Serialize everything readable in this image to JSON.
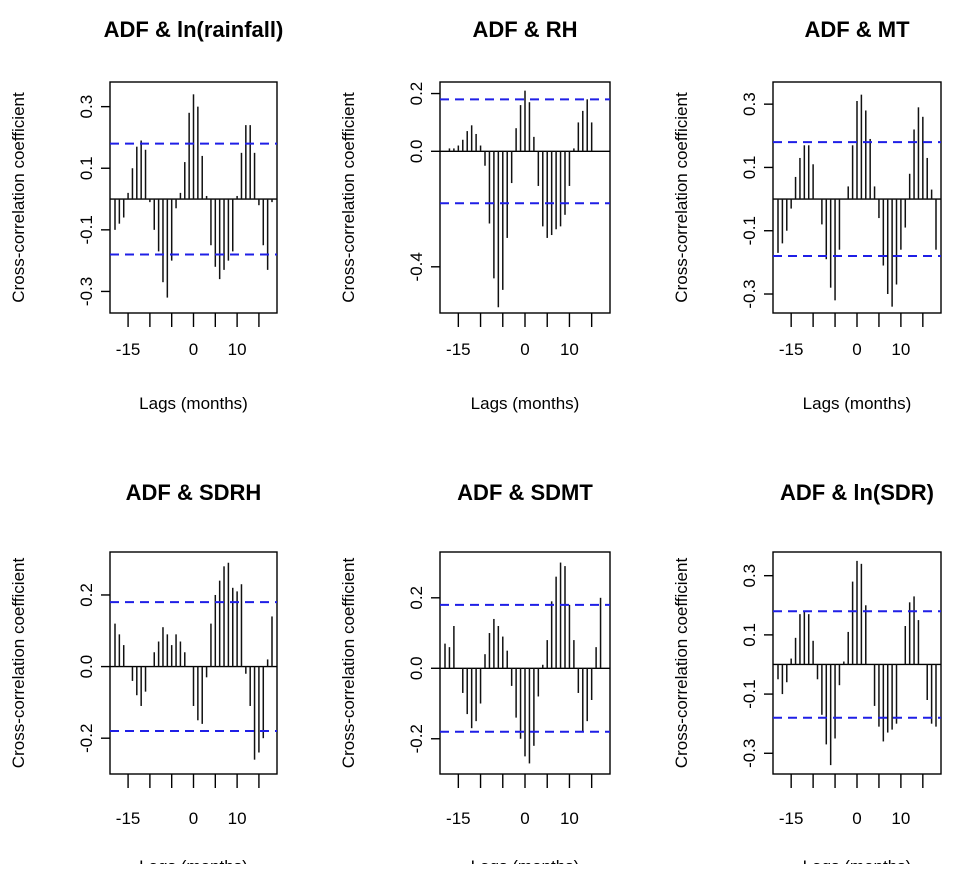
{
  "chart_data": [
    {
      "type": "bar",
      "title": "ADF & ln(rainfall)",
      "xlabel": "Lags (months)",
      "ylabel": "Cross-correlation coefficient",
      "xlim": [
        -18,
        18
      ],
      "ylim": [
        -0.37,
        0.38
      ],
      "xticks": [
        "-15",
        "0",
        "10"
      ],
      "yticks": [
        "-0.3",
        "-0.1",
        "0.1",
        "0.3"
      ],
      "confidence_limit": 0.18,
      "lags": [
        -18,
        -17,
        -16,
        -15,
        -14,
        -13,
        -12,
        -11,
        -10,
        -9,
        -8,
        -7,
        -6,
        -5,
        -4,
        -3,
        -2,
        -1,
        0,
        1,
        2,
        3,
        4,
        5,
        6,
        7,
        8,
        9,
        10,
        11,
        12,
        13,
        14,
        15,
        16,
        17,
        18
      ],
      "values": [
        -0.1,
        -0.08,
        -0.06,
        0.02,
        0.1,
        0.17,
        0.19,
        0.16,
        -0.01,
        -0.1,
        -0.17,
        -0.27,
        -0.32,
        -0.2,
        -0.03,
        0.02,
        0.12,
        0.28,
        0.34,
        0.3,
        0.14,
        0.01,
        -0.15,
        -0.22,
        -0.26,
        -0.23,
        -0.2,
        -0.17,
        0.01,
        0.15,
        0.24,
        0.24,
        0.15,
        -0.02,
        -0.15,
        -0.23,
        -0.01
      ]
    },
    {
      "type": "bar",
      "title": "ADF & RH",
      "xlabel": "Lags (months)",
      "ylabel": "Cross-correlation coefficient",
      "xlim": [
        -18,
        18
      ],
      "ylim": [
        -0.56,
        0.24
      ],
      "xticks": [
        "-15",
        "0",
        "10"
      ],
      "yticks": [
        "-0.4",
        "0.0",
        "0.2"
      ],
      "confidence_limit": 0.18,
      "lags": [
        -18,
        -17,
        -16,
        -15,
        -14,
        -13,
        -12,
        -11,
        -10,
        -9,
        -8,
        -7,
        -6,
        -5,
        -4,
        -3,
        -2,
        -1,
        0,
        1,
        2,
        3,
        4,
        5,
        6,
        7,
        8,
        9,
        10,
        11,
        12,
        13,
        14,
        15,
        16,
        17,
        18
      ],
      "values": [
        0.0,
        0.01,
        0.01,
        0.02,
        0.04,
        0.07,
        0.09,
        0.06,
        0.02,
        -0.05,
        -0.25,
        -0.44,
        -0.54,
        -0.48,
        -0.3,
        -0.11,
        0.08,
        0.16,
        0.21,
        0.17,
        0.05,
        -0.12,
        -0.26,
        -0.3,
        -0.29,
        -0.27,
        -0.26,
        -0.22,
        -0.12,
        0.01,
        0.1,
        0.14,
        0.18,
        0.1,
        0.0,
        0.0,
        0.0
      ]
    },
    {
      "type": "bar",
      "title": "ADF & MT",
      "xlabel": "Lags (months)",
      "ylabel": "Cross-correlation coefficient",
      "xlim": [
        -18,
        18
      ],
      "ylim": [
        -0.36,
        0.37
      ],
      "xticks": [
        "-15",
        "0",
        "10"
      ],
      "yticks": [
        "-0.3",
        "-0.1",
        "0.1",
        "0.3"
      ],
      "confidence_limit": 0.18,
      "lags": [
        -18,
        -17,
        -16,
        -15,
        -14,
        -13,
        -12,
        -11,
        -10,
        -9,
        -8,
        -7,
        -6,
        -5,
        -4,
        -3,
        -2,
        -1,
        0,
        1,
        2,
        3,
        4,
        5,
        6,
        7,
        8,
        9,
        10,
        11,
        12,
        13,
        14,
        15,
        16,
        17,
        18
      ],
      "values": [
        -0.17,
        -0.14,
        -0.1,
        -0.03,
        0.07,
        0.13,
        0.17,
        0.17,
        0.11,
        0.0,
        -0.08,
        -0.19,
        -0.28,
        -0.32,
        -0.16,
        0.0,
        0.04,
        0.17,
        0.31,
        0.33,
        0.28,
        0.19,
        0.04,
        -0.06,
        -0.21,
        -0.3,
        -0.34,
        -0.27,
        -0.16,
        -0.09,
        0.08,
        0.22,
        0.29,
        0.26,
        0.13,
        0.03,
        -0.16
      ]
    },
    {
      "type": "bar",
      "title": "ADF & SDRH",
      "xlabel": "Lags (months)",
      "ylabel": "Cross-correlation coefficient",
      "xlim": [
        -18,
        18
      ],
      "ylim": [
        -0.3,
        0.32
      ],
      "xticks": [
        "-15",
        "0",
        "10"
      ],
      "yticks": [
        "-0.2",
        "0.0",
        "0.2"
      ],
      "confidence_limit": 0.18,
      "lags": [
        -18,
        -17,
        -16,
        -15,
        -14,
        -13,
        -12,
        -11,
        -10,
        -9,
        -8,
        -7,
        -6,
        -5,
        -4,
        -3,
        -2,
        -1,
        0,
        1,
        2,
        3,
        4,
        5,
        6,
        7,
        8,
        9,
        10,
        11,
        12,
        13,
        14,
        15,
        16,
        17,
        18
      ],
      "values": [
        0.12,
        0.09,
        0.06,
        0.0,
        -0.04,
        -0.08,
        -0.11,
        -0.07,
        0.0,
        0.04,
        0.07,
        0.11,
        0.09,
        0.06,
        0.09,
        0.07,
        0.04,
        0.0,
        -0.11,
        -0.15,
        -0.16,
        -0.03,
        0.12,
        0.2,
        0.24,
        0.28,
        0.29,
        0.22,
        0.21,
        0.23,
        -0.02,
        -0.11,
        -0.26,
        -0.24,
        -0.2,
        0.02,
        0.14
      ]
    },
    {
      "type": "bar",
      "title": "ADF & SDMT",
      "xlabel": "Lags (months)",
      "ylabel": "Cross-correlation coefficient",
      "xlim": [
        -18,
        18
      ],
      "ylim": [
        -0.3,
        0.33
      ],
      "xticks": [
        "-15",
        "0",
        "10"
      ],
      "yticks": [
        "-0.2",
        "0.0",
        "0.2"
      ],
      "confidence_limit": 0.18,
      "lags": [
        -18,
        -17,
        -16,
        -15,
        -14,
        -13,
        -12,
        -11,
        -10,
        -9,
        -8,
        -7,
        -6,
        -5,
        -4,
        -3,
        -2,
        -1,
        0,
        1,
        2,
        3,
        4,
        5,
        6,
        7,
        8,
        9,
        10,
        11,
        12,
        13,
        14,
        15,
        16,
        17,
        18
      ],
      "values": [
        0.07,
        0.06,
        0.12,
        0.0,
        -0.07,
        -0.13,
        -0.17,
        -0.15,
        -0.1,
        0.04,
        0.1,
        0.14,
        0.12,
        0.09,
        0.05,
        -0.05,
        -0.14,
        -0.2,
        -0.25,
        -0.27,
        -0.22,
        -0.08,
        0.01,
        0.08,
        0.19,
        0.26,
        0.3,
        0.29,
        0.18,
        0.08,
        -0.07,
        -0.18,
        -0.15,
        -0.09,
        0.06,
        0.2,
        0.0
      ]
    },
    {
      "type": "bar",
      "title": "ADF & ln(SDR)",
      "xlabel": "Lags (months)",
      "ylabel": "Cross-correlation coefficient",
      "xlim": [
        -18,
        18
      ],
      "ylim": [
        -0.37,
        0.38
      ],
      "xticks": [
        "-15",
        "0",
        "10"
      ],
      "yticks": [
        "-0.3",
        "-0.1",
        "0.1",
        "0.3"
      ],
      "confidence_limit": 0.18,
      "lags": [
        -18,
        -17,
        -16,
        -15,
        -14,
        -13,
        -12,
        -11,
        -10,
        -9,
        -8,
        -7,
        -6,
        -5,
        -4,
        -3,
        -2,
        -1,
        0,
        1,
        2,
        3,
        4,
        5,
        6,
        7,
        8,
        9,
        10,
        11,
        12,
        13,
        14,
        15,
        16,
        17,
        18
      ],
      "values": [
        -0.05,
        -0.1,
        -0.06,
        0.02,
        0.09,
        0.17,
        0.18,
        0.17,
        0.08,
        -0.05,
        -0.17,
        -0.27,
        -0.34,
        -0.25,
        -0.07,
        0.01,
        0.11,
        0.28,
        0.35,
        0.34,
        0.2,
        0.0,
        -0.14,
        -0.21,
        -0.26,
        -0.23,
        -0.22,
        -0.2,
        0.0,
        0.13,
        0.21,
        0.23,
        0.15,
        0.0,
        -0.12,
        -0.2,
        -0.21
      ]
    }
  ]
}
